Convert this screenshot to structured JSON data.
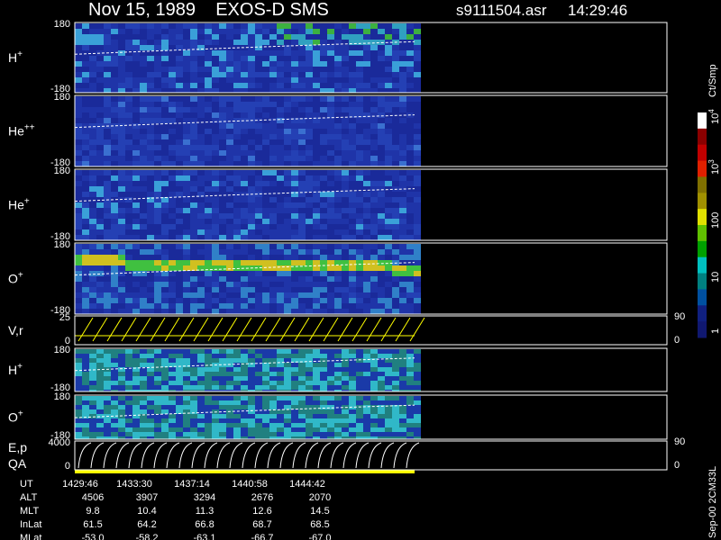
{
  "header": {
    "title": "Nov 15, 1989    EXOS-D SMS",
    "file": "s9111504.asr",
    "time": "14:29:46"
  },
  "panels": [
    {
      "label": "H",
      "sup": "+",
      "top": "180",
      "bottom": "-180"
    },
    {
      "label": "He",
      "sup": "++",
      "top": "180",
      "bottom": "-180"
    },
    {
      "label": "He",
      "sup": "+",
      "top": "180",
      "bottom": "-180"
    },
    {
      "label": "O",
      "sup": "+",
      "top": "180",
      "bottom": "-180"
    },
    {
      "label": "V,r",
      "top": "25",
      "bottom": "0",
      "right_top": "90",
      "right_bottom": "0"
    },
    {
      "label": "H",
      "sup": "+",
      "top": "180",
      "bottom": "-180"
    },
    {
      "label": "O",
      "sup": "+",
      "top": "180",
      "bottom": "-180"
    },
    {
      "label": "E,p",
      "label2": "QA",
      "top": "4000",
      "bottom": "0",
      "right_top": "90",
      "right_bottom": "0"
    }
  ],
  "colorbar": {
    "unit": "Ct/Smp",
    "ticks": [
      {
        "base": "10",
        "exp": "4"
      },
      {
        "base": "10",
        "exp": "3"
      },
      {
        "base": "100"
      },
      {
        "base": "10"
      },
      {
        "base": "1"
      }
    ]
  },
  "footer": {
    "rows": [
      [
        "UT",
        "1429:46",
        "1433:30",
        "1437:14",
        "1440:58",
        "1444:42"
      ],
      [
        "ALT",
        "4506",
        "3907",
        "3294",
        "2676",
        "2070"
      ],
      [
        "MLT",
        "9.8",
        "10.4",
        "11.3",
        "12.6",
        "14.5"
      ],
      [
        "InLat",
        "61.5",
        "64.2",
        "66.8",
        "68.7",
        "68.5"
      ],
      [
        "MLat",
        "-53.0",
        "-58.2",
        "-63.1",
        "-66.7",
        "-67.0"
      ]
    ]
  },
  "side_note": "Sep-00 2CM33L"
}
